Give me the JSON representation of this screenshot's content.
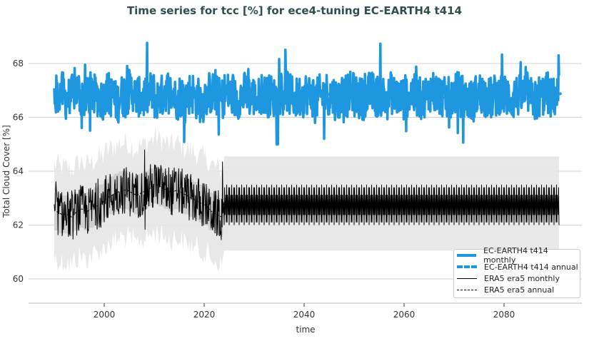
{
  "chart_data": {
    "type": "line",
    "title": "Time series for tcc [%] for ece4-tuning EC-EARTH4 t414",
    "xlabel": "time",
    "ylabel": "Total Cloud Cover [%]",
    "xlim": [
      1983,
      2097
    ],
    "ylim": [
      59.1,
      69.2
    ],
    "xticks": [
      2000,
      2020,
      2040,
      2060,
      2080
    ],
    "yticks": [
      60,
      62,
      64,
      66,
      68
    ],
    "grid": "horizontal",
    "legend_position": "bottom-right",
    "series": [
      {
        "name": "EC-EARTH4 t414 monthly",
        "color": "#1f97e0",
        "style": "solid",
        "x_start": 1990,
        "x_end": 2091,
        "monthly_range": [
          65.0,
          68.8
        ],
        "mean": 66.8
      },
      {
        "name": "EC-EARTH4 t414 annual",
        "color": "#1f97e0",
        "style": "dashed",
        "x_start": 1990,
        "values": [
          66.8,
          66.9,
          66.7,
          66.8,
          67.0,
          66.8,
          66.7,
          66.9,
          66.8,
          66.7,
          66.9,
          66.8,
          66.6,
          66.8,
          66.9,
          67.0,
          66.8,
          66.7,
          66.8,
          66.9,
          66.7,
          66.8,
          67.0,
          66.9,
          66.7,
          66.8,
          66.8,
          66.9,
          66.7,
          66.6,
          66.8,
          66.9,
          66.8,
          66.7,
          66.9,
          66.8,
          66.7,
          66.8,
          66.9,
          66.8,
          66.7,
          66.9,
          66.8,
          66.8,
          66.7,
          66.9,
          67.0,
          66.8,
          66.7,
          66.8,
          66.9,
          66.8,
          66.7,
          66.8,
          66.9,
          66.8,
          66.7,
          66.6,
          66.8,
          66.9,
          66.8,
          66.7,
          66.8,
          66.9,
          66.8,
          66.8,
          66.7,
          66.9,
          66.8,
          66.7,
          66.8,
          66.9,
          66.8,
          66.7,
          66.8,
          67.0,
          66.9,
          66.8,
          66.7,
          66.8,
          66.9,
          66.8,
          66.7,
          66.6,
          66.8,
          66.9,
          66.8,
          66.7,
          66.8,
          66.9,
          66.8,
          66.7,
          66.8,
          66.8,
          66.9,
          66.7,
          66.6,
          66.8,
          66.9,
          66.7,
          66.8,
          66.9
        ]
      },
      {
        "name": "ERA5 era5 monthly",
        "color": "#000000",
        "style": "solid",
        "x_start": 1990,
        "x_end": 2091,
        "monthly_range": [
          60.7,
          64.8
        ],
        "climatology_range_after_2024": [
          62.0,
          63.5
        ]
      },
      {
        "name": "ERA5 era5 annual",
        "color": "#000000",
        "style": "dashed",
        "x_start": 1990,
        "values": [
          62.5,
          62.4,
          62.4,
          62.3,
          62.5,
          62.6,
          62.5,
          62.6,
          62.7,
          62.8,
          63.0,
          63.1,
          63.2,
          63.3,
          63.3,
          63.2,
          63.1,
          63.2,
          63.3,
          63.4,
          63.5,
          63.4,
          63.3,
          63.2,
          63.3,
          63.2,
          63.1,
          63.0,
          62.9,
          62.8,
          62.7,
          62.5,
          62.4,
          62.3
        ],
        "climatology_mean_after_2024": 62.8
      }
    ],
    "band": {
      "color": "#d9d9d9",
      "range": [
        59.6,
        64.6
      ]
    }
  }
}
